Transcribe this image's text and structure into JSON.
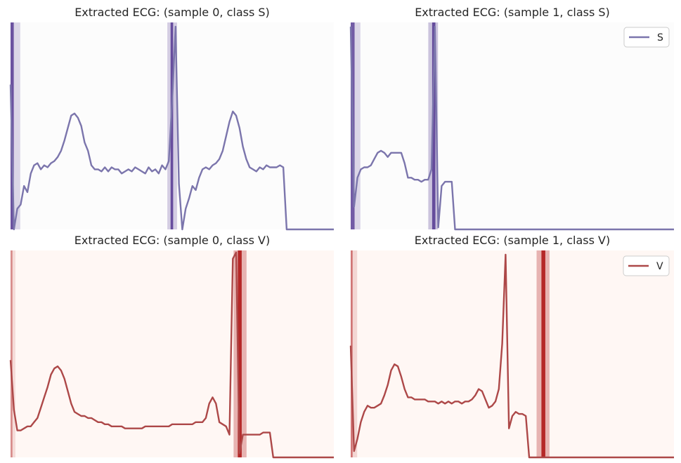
{
  "chart_data": [
    {
      "type": "line",
      "title": "Extracted ECG: (sample 0, class S)",
      "series": [
        {
          "values": [
            0.7,
            0.0,
            0.1,
            0.12,
            0.21,
            0.18,
            0.27,
            0.31,
            0.32,
            0.29,
            0.31,
            0.3,
            0.32,
            0.33,
            0.35,
            0.38,
            0.43,
            0.49,
            0.55,
            0.56,
            0.54,
            0.5,
            0.42,
            0.38,
            0.31,
            0.29,
            0.29,
            0.28,
            0.3,
            0.28,
            0.3,
            0.29,
            0.29,
            0.27,
            0.28,
            0.29,
            0.28,
            0.3,
            0.29,
            0.28,
            0.27,
            0.3,
            0.28,
            0.29,
            0.27,
            0.31,
            0.29,
            0.33,
            0.62,
            0.98,
            0.22,
            0.0,
            0.1,
            0.15,
            0.21,
            0.19,
            0.25,
            0.29,
            0.3,
            0.29,
            0.31,
            0.32,
            0.34,
            0.38,
            0.45,
            0.52,
            0.57,
            0.55,
            0.49,
            0.4,
            0.34,
            0.3,
            0.29,
            0.28,
            0.3,
            0.29,
            0.31,
            0.3,
            0.3,
            0.3,
            0.31,
            0.3,
            0.0,
            0.0,
            0.0,
            0.0,
            0.0,
            0.0,
            0.0,
            0.0,
            0.0,
            0.0,
            0.0,
            0.0,
            0.0,
            0.0,
            0.0
          ]
        }
      ],
      "color": "#7b75ac",
      "background": "#fcfcfc",
      "highlight_color": "#5b3f96",
      "highlights": [
        {
          "x": 0.0,
          "w": 0.01,
          "a": 0.9
        },
        {
          "x": 0.01,
          "w": 0.02,
          "a": 0.2
        },
        {
          "x": 0.495,
          "w": 0.008,
          "a": 0.9
        },
        {
          "x": 0.485,
          "w": 0.03,
          "a": 0.25
        }
      ],
      "legend": null
    },
    {
      "type": "line",
      "title": "Extracted ECG: (sample 1, class S)",
      "series": [
        {
          "name": "S",
          "values": [
            0.98,
            0.11,
            0.25,
            0.29,
            0.3,
            0.3,
            0.31,
            0.34,
            0.37,
            0.38,
            0.37,
            0.35,
            0.37,
            0.37,
            0.37,
            0.37,
            0.32,
            0.25,
            0.25,
            0.24,
            0.24,
            0.23,
            0.24,
            0.24,
            0.29,
            0.98,
            0.01,
            0.21,
            0.23,
            0.23,
            0.23,
            0.0,
            0.0,
            0.0,
            0.0,
            0.0,
            0.0,
            0.0,
            0.0,
            0.0,
            0.0,
            0.0,
            0.0,
            0.0,
            0.0,
            0.0,
            0.0,
            0.0,
            0.0,
            0.0,
            0.0,
            0.0,
            0.0,
            0.0,
            0.0,
            0.0,
            0.0,
            0.0,
            0.0,
            0.0,
            0.0,
            0.0,
            0.0,
            0.0,
            0.0,
            0.0,
            0.0,
            0.0,
            0.0,
            0.0,
            0.0,
            0.0,
            0.0,
            0.0,
            0.0,
            0.0,
            0.0,
            0.0,
            0.0,
            0.0,
            0.0,
            0.0,
            0.0,
            0.0,
            0.0,
            0.0,
            0.0,
            0.0,
            0.0,
            0.0,
            0.0,
            0.0,
            0.0,
            0.0,
            0.0,
            0.0,
            0.0
          ]
        }
      ],
      "color": "#7b75ac",
      "background": "#fcfcfc",
      "highlight_color": "#5b3f96",
      "highlights": [
        {
          "x": 0.0,
          "w": 0.012,
          "a": 0.85
        },
        {
          "x": 0.01,
          "w": 0.02,
          "a": 0.2
        },
        {
          "x": 0.252,
          "w": 0.01,
          "a": 0.9
        },
        {
          "x": 0.24,
          "w": 0.03,
          "a": 0.3
        }
      ],
      "legend": "top-right"
    },
    {
      "type": "line",
      "title": "Extracted ECG: (sample 0, class V)",
      "series": [
        {
          "values": [
            0.47,
            0.23,
            0.13,
            0.13,
            0.14,
            0.15,
            0.15,
            0.17,
            0.19,
            0.24,
            0.29,
            0.34,
            0.4,
            0.43,
            0.44,
            0.42,
            0.38,
            0.32,
            0.26,
            0.22,
            0.21,
            0.2,
            0.2,
            0.19,
            0.19,
            0.18,
            0.17,
            0.17,
            0.16,
            0.16,
            0.15,
            0.15,
            0.15,
            0.15,
            0.14,
            0.14,
            0.14,
            0.14,
            0.14,
            0.14,
            0.15,
            0.15,
            0.15,
            0.15,
            0.15,
            0.15,
            0.15,
            0.15,
            0.16,
            0.16,
            0.16,
            0.16,
            0.16,
            0.16,
            0.16,
            0.17,
            0.17,
            0.17,
            0.19,
            0.26,
            0.29,
            0.26,
            0.17,
            0.16,
            0.15,
            0.11,
            0.96,
            0.99,
            0.02,
            0.11,
            0.11,
            0.11,
            0.11,
            0.11,
            0.11,
            0.12,
            0.12,
            0.12,
            0.0,
            0.0,
            0.0,
            0.0,
            0.0,
            0.0,
            0.0,
            0.0,
            0.0,
            0.0,
            0.0,
            0.0,
            0.0,
            0.0,
            0.0,
            0.0,
            0.0,
            0.0,
            0.0
          ]
        }
      ],
      "color": "#ad4848",
      "background": "#fff7f4",
      "highlight_color": "#b01818",
      "highlights": [
        {
          "x": 0.0,
          "w": 0.006,
          "a": 0.4
        },
        {
          "x": 0.0,
          "w": 0.015,
          "a": 0.12
        },
        {
          "x": 0.703,
          "w": 0.012,
          "a": 0.9
        },
        {
          "x": 0.69,
          "w": 0.04,
          "a": 0.3
        }
      ],
      "legend": null
    },
    {
      "type": "line",
      "title": "Extracted ECG: (sample 1, class V)",
      "series": [
        {
          "name": "V",
          "values": [
            0.54,
            0.03,
            0.09,
            0.17,
            0.22,
            0.25,
            0.24,
            0.24,
            0.25,
            0.26,
            0.3,
            0.35,
            0.42,
            0.45,
            0.44,
            0.39,
            0.33,
            0.29,
            0.29,
            0.28,
            0.28,
            0.28,
            0.28,
            0.27,
            0.27,
            0.27,
            0.26,
            0.27,
            0.26,
            0.27,
            0.26,
            0.27,
            0.27,
            0.26,
            0.27,
            0.27,
            0.28,
            0.3,
            0.33,
            0.32,
            0.28,
            0.24,
            0.25,
            0.27,
            0.33,
            0.55,
            0.98,
            0.14,
            0.2,
            0.22,
            0.21,
            0.21,
            0.2,
            0.0,
            0.0,
            0.0,
            0.0,
            0.0,
            0.0,
            0.0,
            0.0,
            0.0,
            0.0,
            0.0,
            0.0,
            0.0,
            0.0,
            0.0,
            0.0,
            0.0,
            0.0,
            0.0,
            0.0,
            0.0,
            0.0,
            0.0,
            0.0,
            0.0,
            0.0,
            0.0,
            0.0,
            0.0,
            0.0,
            0.0,
            0.0,
            0.0,
            0.0,
            0.0,
            0.0,
            0.0,
            0.0,
            0.0,
            0.0,
            0.0,
            0.0,
            0.0,
            0.0
          ]
        }
      ],
      "color": "#ad4848",
      "background": "#fff7f4",
      "highlight_color": "#b01818",
      "highlights": [
        {
          "x": 0.0,
          "w": 0.006,
          "a": 0.5
        },
        {
          "x": 0.0,
          "w": 0.02,
          "a": 0.15
        },
        {
          "x": 0.59,
          "w": 0.012,
          "a": 0.9
        },
        {
          "x": 0.575,
          "w": 0.04,
          "a": 0.3
        }
      ],
      "legend": "top-right"
    }
  ]
}
